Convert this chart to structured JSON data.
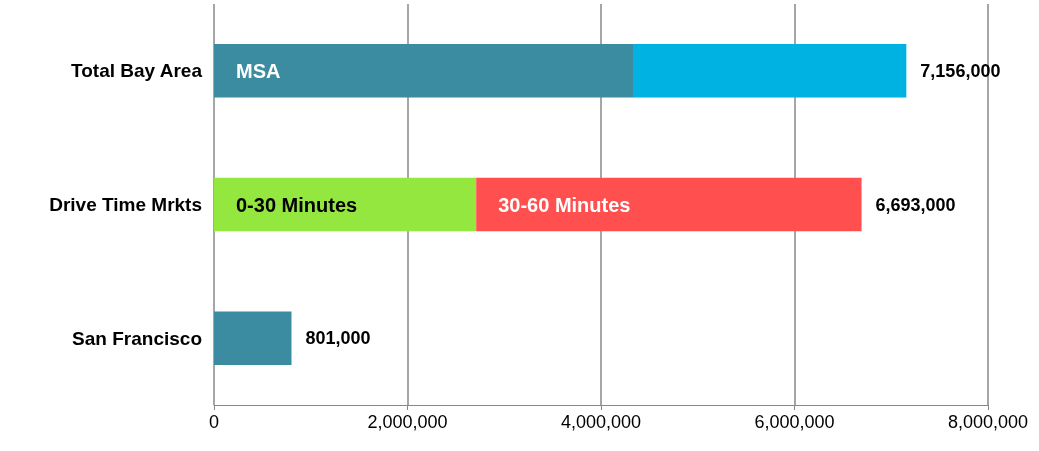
{
  "chart_data": {
    "type": "bar",
    "orientation": "horizontal",
    "stacked": true,
    "categories": [
      "Total Bay Area",
      "Drive Time Mrkts",
      "San Francisco"
    ],
    "series": [
      {
        "name": "MSA",
        "color": "#3b8ca1",
        "values": [
          4340000,
          null,
          null
        ]
      },
      {
        "color": "#00b2e2",
        "values": [
          2816000,
          null,
          null
        ]
      },
      {
        "name": "0-30 Minutes",
        "color": "#93e73f",
        "values": [
          null,
          2710000,
          null
        ]
      },
      {
        "name": "30-60 Minutes",
        "color": "#ff4f4f",
        "values": [
          null,
          3983000,
          null
        ]
      },
      {
        "color": "#3b8ca1",
        "values": [
          null,
          null,
          801000
        ]
      }
    ],
    "totals": [
      "7,156,000",
      "6,693,000",
      "801,000"
    ],
    "xlim": [
      0,
      8000000
    ],
    "xticks": [
      0,
      {
        "value": 2000000,
        "label": "2,000,000"
      },
      {
        "value": 4000000,
        "label": "4,000,000"
      },
      {
        "value": 6000000,
        "label": "6,000,000"
      },
      {
        "value": 8000000,
        "label": "8,000,000"
      }
    ],
    "grid": "x",
    "legend": false
  }
}
